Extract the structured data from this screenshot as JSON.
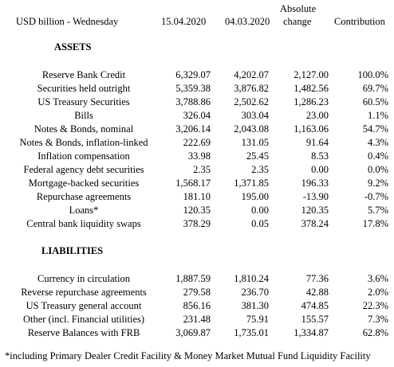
{
  "header": {
    "title": "USD billion - Wednesday",
    "col1": "15.04.2020",
    "col2": "04.03.2020",
    "col3_line1": "Absolute",
    "col3_line2": "change",
    "col4": "Contribution"
  },
  "sections": [
    {
      "title": "ASSETS",
      "rows": [
        [
          "Reserve Bank Credit",
          "6,329.07",
          "4,202.07",
          "2,127.00",
          "100.0%"
        ],
        [
          "Securities held outright",
          "5,359.38",
          "3,876.82",
          "1,482.56",
          "69.7%"
        ],
        [
          "US Treasury Securities",
          "3,788.86",
          "2,502.62",
          "1,286.23",
          "60.5%"
        ],
        [
          "Bills",
          "326.04",
          "303.04",
          "23.00",
          "1.1%"
        ],
        [
          "Notes & Bonds, nominal",
          "3,206.14",
          "2,043.08",
          "1,163.06",
          "54.7%"
        ],
        [
          "Notes & Bonds, inflation-linked",
          "222.69",
          "131.05",
          "91.64",
          "4.3%"
        ],
        [
          "Inflation compensation",
          "33.98",
          "25.45",
          "8.53",
          "0.4%"
        ],
        [
          "Federal agency debt securities",
          "2.35",
          "2.35",
          "0.00",
          "0.0%"
        ],
        [
          "Mortgage-backed securities",
          "1,568.17",
          "1,371.85",
          "196.33",
          "9.2%"
        ],
        [
          "Repurchase agreements",
          "181.10",
          "195.00",
          "-13.90",
          "-0.7%"
        ],
        [
          "Loans*",
          "120.35",
          "0.00",
          "120.35",
          "5.7%"
        ],
        [
          "Central bank liquidity swaps",
          "378.29",
          "0.05",
          "378.24",
          "17.8%"
        ]
      ]
    },
    {
      "title": "LIABILITIES",
      "rows": [
        [
          "Currency in circulation",
          "1,887.59",
          "1,810.24",
          "77.36",
          "3.6%"
        ],
        [
          "Reverse repurchase agreements",
          "279.58",
          "236.70",
          "42.88",
          "2.0%"
        ],
        [
          "US Treasury general account",
          "856.16",
          "381.30",
          "474.85",
          "22.3%"
        ],
        [
          "Other (incl. Financial utilities)",
          "231.48",
          "75.91",
          "155.57",
          "7.3%"
        ],
        [
          "Reserve Balances with FRB",
          "3,069.87",
          "1,735.01",
          "1,334.87",
          "62.8%"
        ]
      ]
    }
  ],
  "footnote": "*including Primary Dealer Credit Facility & Money Market Mutual Fund Liquidity Facility"
}
